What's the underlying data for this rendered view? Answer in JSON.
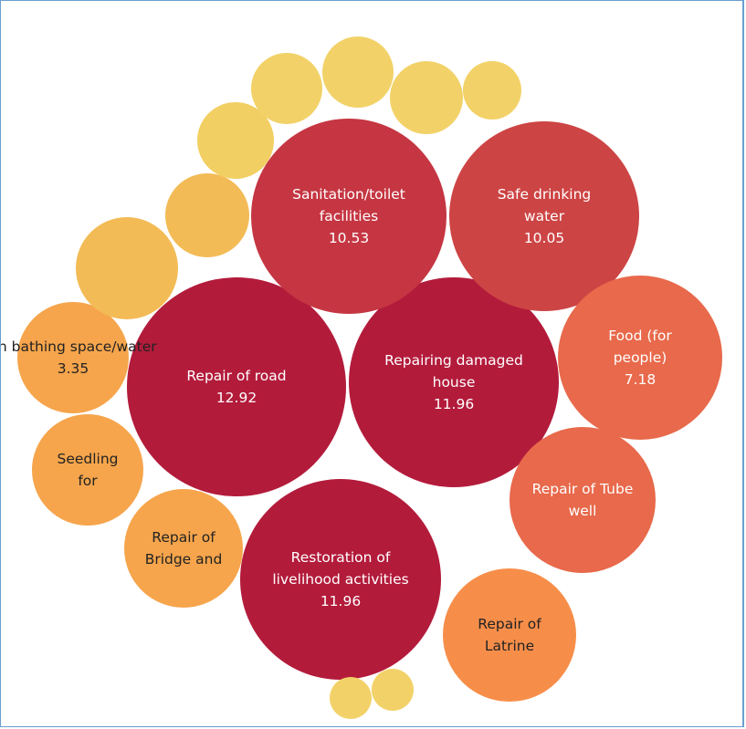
{
  "chart_data": {
    "type": "packed-bubble",
    "title": "",
    "bubbles": [
      {
        "label": [
          "Repair of road"
        ],
        "value": "12.92",
        "color": "#b31b3b",
        "text": "#ffffff"
      },
      {
        "label": [
          "Repairing damaged",
          "house"
        ],
        "value": "11.96",
        "color": "#b31b3b",
        "text": "#ffffff"
      },
      {
        "label": [
          "Restoration of",
          "livelihood activities"
        ],
        "value": "11.96",
        "color": "#b31b3b",
        "text": "#ffffff"
      },
      {
        "label": [
          "Sanitation/toilet",
          "facilities"
        ],
        "value": "10.53",
        "color": "#c53642",
        "text": "#ffffff"
      },
      {
        "label": [
          "Safe drinking",
          "water"
        ],
        "value": "10.05",
        "color": "#cd4444",
        "text": "#ffffff"
      },
      {
        "label": [
          "Food  (for",
          "people)"
        ],
        "value": "7.18",
        "color": "#e8694b",
        "text": "#ffffff"
      },
      {
        "label": [
          "Repair of Tube",
          "well"
        ],
        "value": "",
        "color": "#e8694b",
        "text": "#ffffff"
      },
      {
        "label": [
          "Repair of",
          "Latrine"
        ],
        "value": "",
        "color": "#f68e4a",
        "text": "#222222"
      },
      {
        "label": [
          "on bathing space/water"
        ],
        "value": "3.35",
        "color": "#f6a54c",
        "text": "#222222"
      },
      {
        "label": [
          "Seedling",
          "for"
        ],
        "value": "",
        "color": "#f6a54c",
        "text": "#222222"
      },
      {
        "label": [
          "Repair of",
          "Bridge and"
        ],
        "value": "",
        "color": "#f6a54c",
        "text": "#222222"
      },
      {
        "label": [],
        "value": "",
        "color": "#f3bb56",
        "text": "#222222"
      },
      {
        "label": [],
        "value": "",
        "color": "#f3bb56",
        "text": "#222222"
      },
      {
        "label": [],
        "value": "",
        "color": "#f2cf62",
        "text": "#222222"
      },
      {
        "label": [],
        "value": "",
        "color": "#f2d268",
        "text": "#222222"
      },
      {
        "label": [],
        "value": "",
        "color": "#f2d268",
        "text": "#222222"
      },
      {
        "label": [],
        "value": "",
        "color": "#f2d268",
        "text": "#222222"
      },
      {
        "label": [],
        "value": "",
        "color": "#f2d268",
        "text": "#222222"
      },
      {
        "label": [],
        "value": "",
        "color": "#f2d268",
        "text": "#222222"
      },
      {
        "label": [],
        "value": "",
        "color": "#f2d268",
        "text": "#222222"
      }
    ]
  }
}
